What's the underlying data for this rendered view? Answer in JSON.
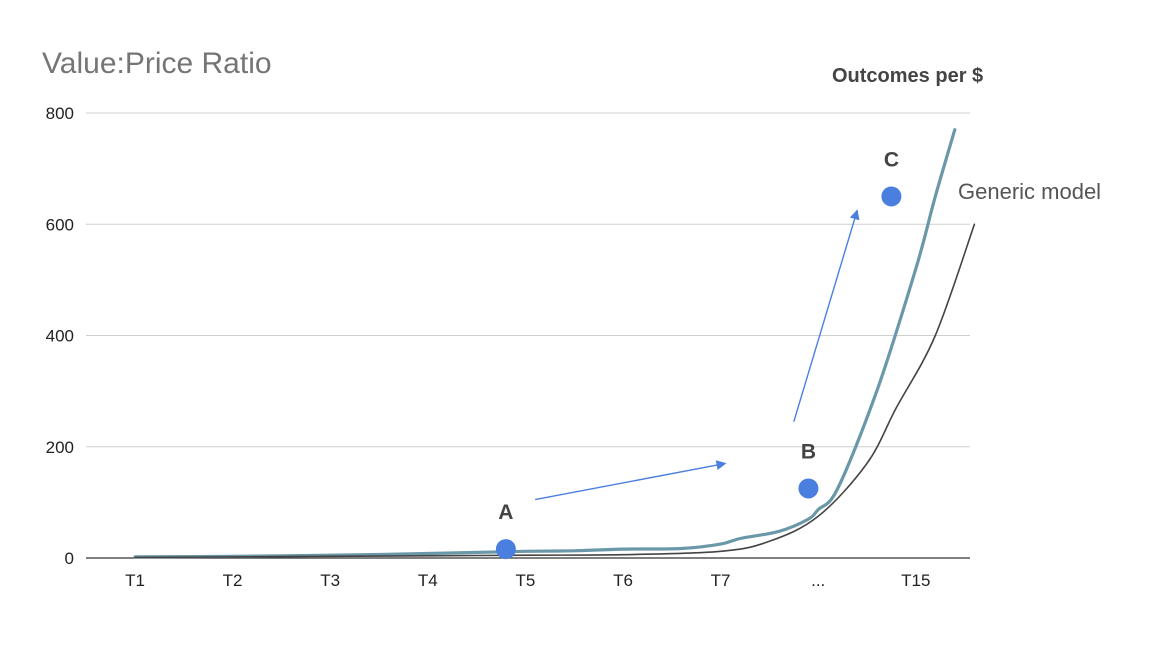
{
  "chart_data": {
    "type": "line",
    "title": "Value:Price Ratio",
    "xlabel": "",
    "ylabel": "",
    "categories": [
      "T1",
      "T2",
      "T3",
      "T4",
      "T5",
      "T6",
      "T7",
      "...",
      "T15"
    ],
    "ylim": [
      0,
      800
    ],
    "yticks": [
      0,
      200,
      400,
      600,
      800
    ],
    "grid": "horizontal",
    "series": [
      {
        "name": "Outcomes per $",
        "color": "#6b98a8",
        "points": [
          [
            0,
            2
          ],
          [
            1,
            3
          ],
          [
            2,
            5
          ],
          [
            3,
            8
          ],
          [
            4,
            12
          ],
          [
            4.5,
            13
          ],
          [
            5,
            16
          ],
          [
            5.6,
            17
          ],
          [
            6,
            25
          ],
          [
            6.2,
            35
          ],
          [
            6.6,
            48
          ],
          [
            6.9,
            70
          ],
          [
            7,
            87
          ],
          [
            7.2,
            125
          ],
          [
            7.6,
            300
          ],
          [
            8,
            520
          ],
          [
            8.2,
            650
          ],
          [
            8.4,
            770
          ]
        ]
      },
      {
        "name": "Generic model",
        "color": "#444444",
        "points": [
          [
            0,
            1
          ],
          [
            1,
            2
          ],
          [
            2,
            3
          ],
          [
            3,
            4
          ],
          [
            4,
            5
          ],
          [
            5,
            6
          ],
          [
            6,
            12
          ],
          [
            6.5,
            30
          ],
          [
            7,
            75
          ],
          [
            7.5,
            170
          ],
          [
            7.8,
            270
          ],
          [
            8.2,
            400
          ],
          [
            8.6,
            600
          ]
        ]
      }
    ],
    "markers": [
      {
        "label": "A",
        "x": 3.8,
        "y": 16,
        "color": "#4a7fe0"
      },
      {
        "label": "B",
        "x": 6.9,
        "y": 125,
        "color": "#4a7fe0"
      },
      {
        "label": "C",
        "x": 7.75,
        "y": 650,
        "color": "#4a7fe0"
      }
    ],
    "arrows": [
      {
        "from": [
          4.1,
          105
        ],
        "to": [
          6.05,
          170
        ],
        "color": "#4a7fe0"
      },
      {
        "from": [
          6.75,
          245
        ],
        "to": [
          7.4,
          625
        ],
        "color": "#4a7fe0"
      }
    ]
  }
}
